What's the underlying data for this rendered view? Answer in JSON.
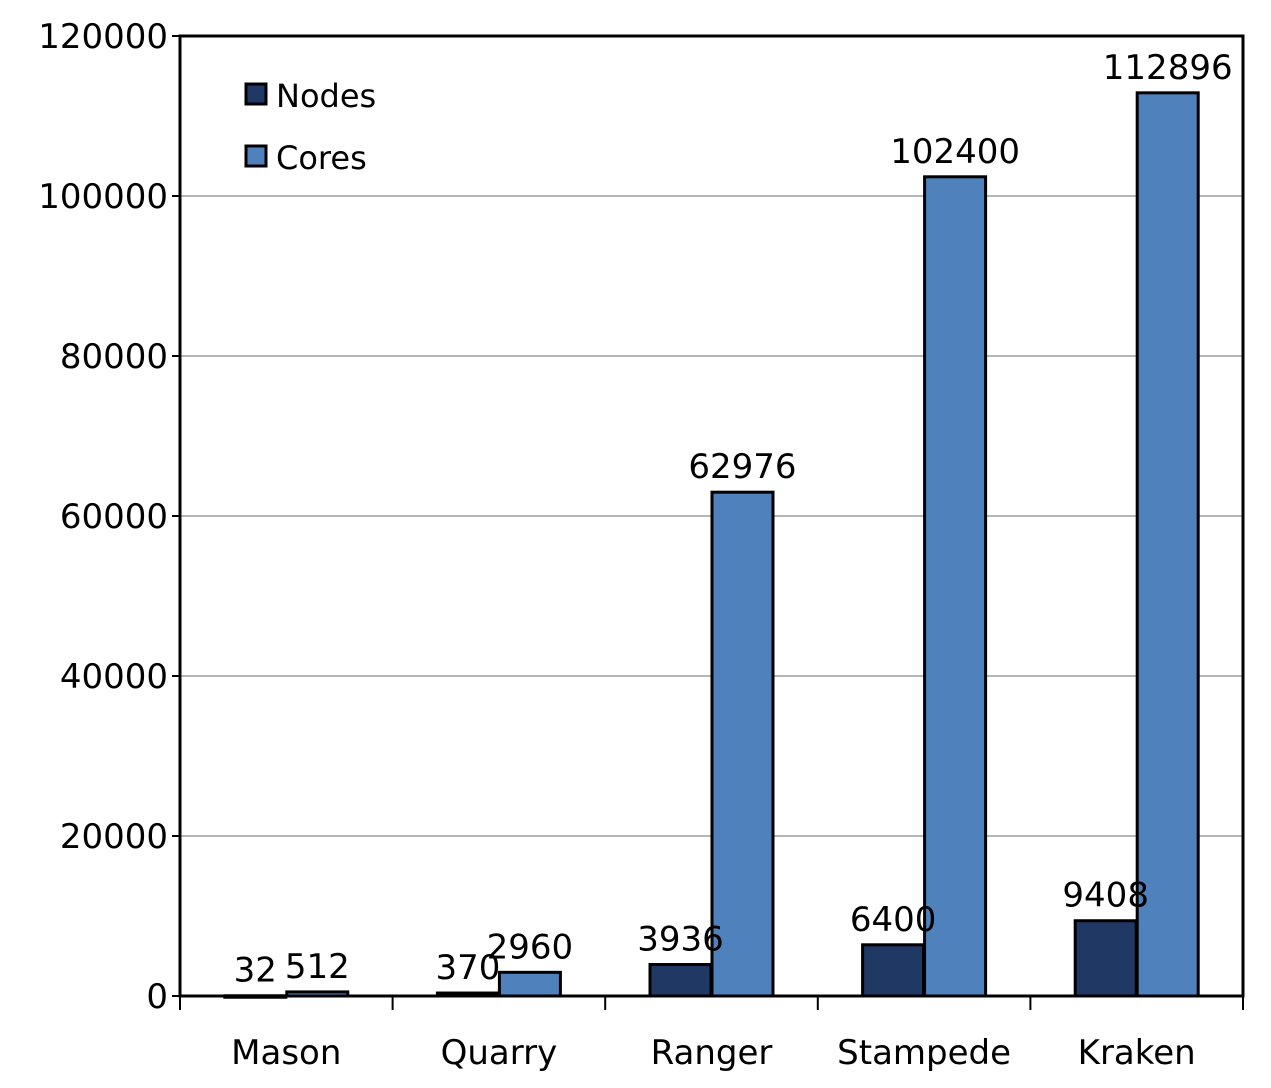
{
  "chart_data": {
    "type": "bar",
    "categories": [
      "Mason",
      "Quarry",
      "Ranger",
      "Stampede",
      "Kraken"
    ],
    "series": [
      {
        "name": "Nodes",
        "values": [
          32,
          370,
          3936,
          6400,
          9408
        ],
        "color": "#1f3864"
      },
      {
        "name": "Cores",
        "values": [
          512,
          2960,
          62976,
          102400,
          112896
        ],
        "color": "#4f81bd"
      }
    ],
    "data_labels": {
      "Nodes": [
        "32",
        "370",
        "3936",
        "6400",
        "9408"
      ],
      "Cores": [
        "512",
        "2960",
        "62976",
        "102400",
        "112896"
      ]
    },
    "title": "",
    "xlabel": "",
    "ylabel": "",
    "ylim": [
      0,
      120000
    ],
    "yticks": [
      0,
      20000,
      40000,
      60000,
      80000,
      100000,
      120000
    ],
    "ytick_labels": [
      "0",
      "20000",
      "40000",
      "60000",
      "80000",
      "100000",
      "120000"
    ],
    "grid": true,
    "legend_position": "top-left"
  }
}
